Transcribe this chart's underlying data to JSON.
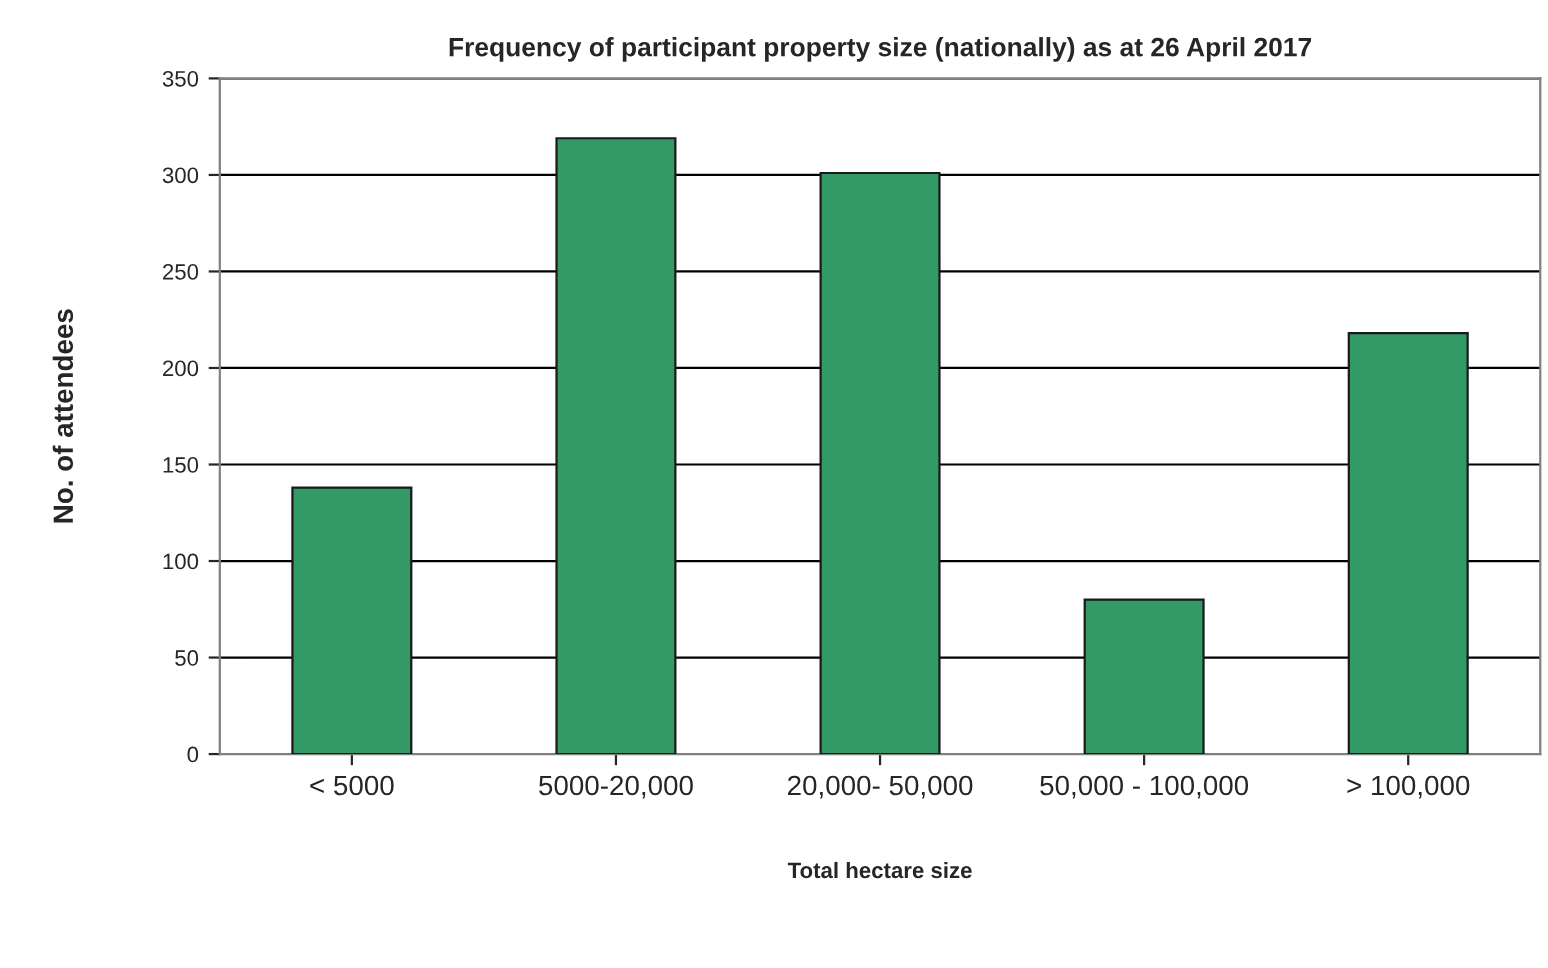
{
  "chart_data": {
    "type": "bar",
    "title": "Frequency of participant property size (nationally) as at 26 April 2017",
    "xlabel": "Total hectare size",
    "ylabel": "No. of attendees",
    "categories": [
      "< 5000",
      "5000-20,000",
      "20,000- 50,000",
      "50,000 - 100,000",
      "> 100,000"
    ],
    "values": [
      138,
      319,
      301,
      80,
      218
    ],
    "color": "#339966",
    "ylim": [
      0,
      350
    ],
    "yticks": [
      0,
      50,
      100,
      150,
      200,
      250,
      300,
      350
    ],
    "grid": "y",
    "legend": false
  }
}
